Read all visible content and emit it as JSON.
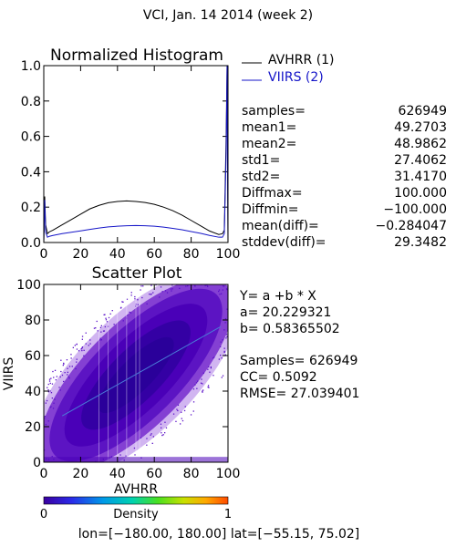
{
  "title": "VCI,  Jan. 14 2014 (week 2)",
  "chart_data": [
    {
      "type": "line",
      "title": "Normalized Histogram",
      "xlim": [
        0,
        100
      ],
      "ylim": [
        0,
        1
      ],
      "x_ticks": [
        "0",
        "20",
        "40",
        "60",
        "80",
        "100"
      ],
      "y_ticks": [
        "0.0",
        "0.2",
        "0.4",
        "0.6",
        "0.8",
        "1.0"
      ],
      "legend": {
        "position": "right",
        "entries": [
          "AVHRR (1)",
          "VIIRS (2)"
        ]
      },
      "series": [
        {
          "name": "AVHRR (1)",
          "color": "#000000",
          "x": [
            0,
            0.5,
            1,
            2,
            3,
            5,
            10,
            15,
            20,
            25,
            30,
            35,
            40,
            45,
            50,
            55,
            60,
            65,
            70,
            75,
            80,
            85,
            90,
            95,
            97,
            98,
            99,
            99.5,
            100
          ],
          "y": [
            0.0,
            0.26,
            0.1,
            0.05,
            0.06,
            0.07,
            0.1,
            0.13,
            0.16,
            0.19,
            0.21,
            0.225,
            0.232,
            0.235,
            0.232,
            0.226,
            0.216,
            0.2,
            0.18,
            0.155,
            0.125,
            0.095,
            0.065,
            0.045,
            0.05,
            0.07,
            0.6,
            1.0,
            0.0
          ]
        },
        {
          "name": "VIIRS (2)",
          "color": "#1515c8",
          "x": [
            0,
            0.5,
            1,
            2,
            3,
            5,
            10,
            15,
            20,
            25,
            30,
            35,
            40,
            45,
            50,
            55,
            60,
            65,
            70,
            75,
            80,
            85,
            90,
            95,
            97,
            98,
            99,
            99.5,
            100
          ],
          "y": [
            0.0,
            0.24,
            0.06,
            0.03,
            0.035,
            0.04,
            0.05,
            0.058,
            0.066,
            0.074,
            0.082,
            0.088,
            0.092,
            0.095,
            0.096,
            0.095,
            0.092,
            0.087,
            0.08,
            0.072,
            0.062,
            0.052,
            0.04,
            0.03,
            0.03,
            0.05,
            0.5,
            1.0,
            0.0
          ]
        }
      ]
    },
    {
      "type": "scatter",
      "title": "Scatter Plot",
      "xlabel": "AVHRR",
      "ylabel": "VIIRS",
      "xlim": [
        0,
        100
      ],
      "ylim": [
        0,
        100
      ],
      "x_ticks": [
        "0",
        "20",
        "40",
        "60",
        "80",
        "100"
      ],
      "y_ticks": [
        "0",
        "20",
        "40",
        "60",
        "80",
        "100"
      ],
      "density_colorbar": {
        "label": "Density",
        "min_label": "0",
        "max_label": "1"
      },
      "regression": {
        "a": 20.229321,
        "b": 0.58365502,
        "color": "#4a7bd8"
      }
    }
  ],
  "stats": [
    {
      "label": "samples=",
      "value": "626949"
    },
    {
      "label": "mean1=",
      "value": "49.2703"
    },
    {
      "label": "mean2=",
      "value": "48.9862"
    },
    {
      "label": "std1=",
      "value": "27.4062"
    },
    {
      "label": "std2=",
      "value": "31.4170"
    },
    {
      "label": "Diffmax=",
      "value": "100.000"
    },
    {
      "label": "Diffmin=",
      "value": "−100.000"
    },
    {
      "label": "mean(diff)=",
      "value": "−0.284047"
    },
    {
      "label": "stddev(diff)=",
      "value": "29.3482"
    }
  ],
  "regression_text": {
    "equation": "Y= a +b * X",
    "a_line": "a= 20.229321",
    "b_line": "b= 0.58365502",
    "samples_line": "Samples= 626949",
    "cc_line": "CC=  0.5092",
    "rmse_line": "RMSE= 27.039401"
  },
  "footer": "lon=[−180.00, 180.00] lat=[−55.15, 75.02]"
}
